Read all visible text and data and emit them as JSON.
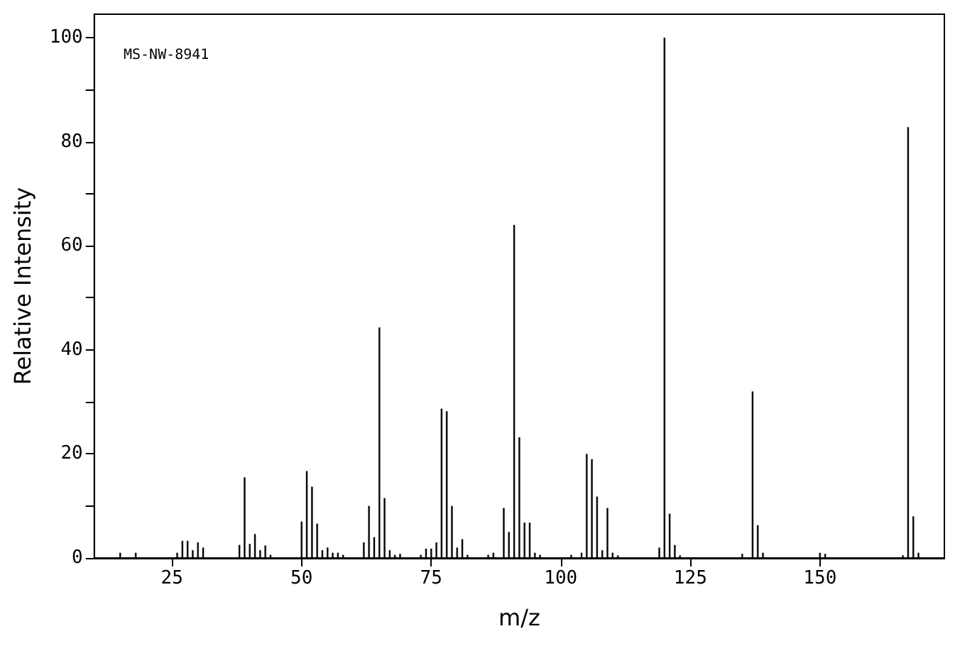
{
  "chart_data": {
    "type": "bar",
    "xlabel": "m/z",
    "ylabel": "Relative Intensity",
    "annotations": [
      "MS-NW-8941"
    ],
    "x": [
      15,
      18,
      26,
      27,
      28,
      29,
      30,
      31,
      38,
      39,
      40,
      41,
      42,
      43,
      44,
      50,
      51,
      52,
      53,
      54,
      55,
      56,
      57,
      58,
      62,
      63,
      64,
      65,
      66,
      67,
      68,
      69,
      73,
      74,
      75,
      76,
      77,
      78,
      79,
      80,
      81,
      82,
      86,
      87,
      89,
      90,
      91,
      92,
      93,
      94,
      95,
      96,
      102,
      104,
      105,
      106,
      107,
      108,
      109,
      110,
      111,
      119,
      120,
      121,
      122,
      123,
      135,
      137,
      138,
      139,
      150,
      151,
      166,
      167,
      168,
      169
    ],
    "values": [
      1,
      1,
      1,
      3.3,
      3.3,
      1.5,
      3,
      2,
      2.5,
      15.5,
      2.7,
      4.6,
      1.5,
      2.4,
      0.6,
      7,
      16.7,
      13.7,
      6.6,
      1.5,
      2,
      1,
      1,
      0.6,
      3,
      10,
      4,
      44.3,
      11.5,
      1.5,
      0.6,
      0.8,
      0.6,
      1.8,
      1.8,
      3,
      28.7,
      28.2,
      10,
      2,
      3.6,
      0.6,
      0.6,
      1,
      9.6,
      5,
      64,
      23.2,
      6.8,
      6.8,
      1,
      0.6,
      0.6,
      1,
      20,
      19,
      11.8,
      1.5,
      9.6,
      1,
      0.5,
      2,
      100,
      8.5,
      2.5,
      0.5,
      0.8,
      32,
      6.3,
      1,
      1,
      0.8,
      0.5,
      82.8,
      8,
      1
    ],
    "color": "#000000",
    "xlim": [
      10,
      174
    ],
    "xticks": [
      25,
      50,
      75,
      100,
      125,
      150
    ],
    "ylim": [
      0,
      104.5
    ],
    "yticks": [
      0,
      {
        "value": 10,
        "label": null
      },
      20,
      {
        "value": 30,
        "label": null
      },
      40,
      {
        "value": 50,
        "label": null
      },
      60,
      {
        "value": 70,
        "label": null
      },
      80,
      {
        "value": 90,
        "label": null
      },
      100
    ],
    "line_style": "solid"
  }
}
